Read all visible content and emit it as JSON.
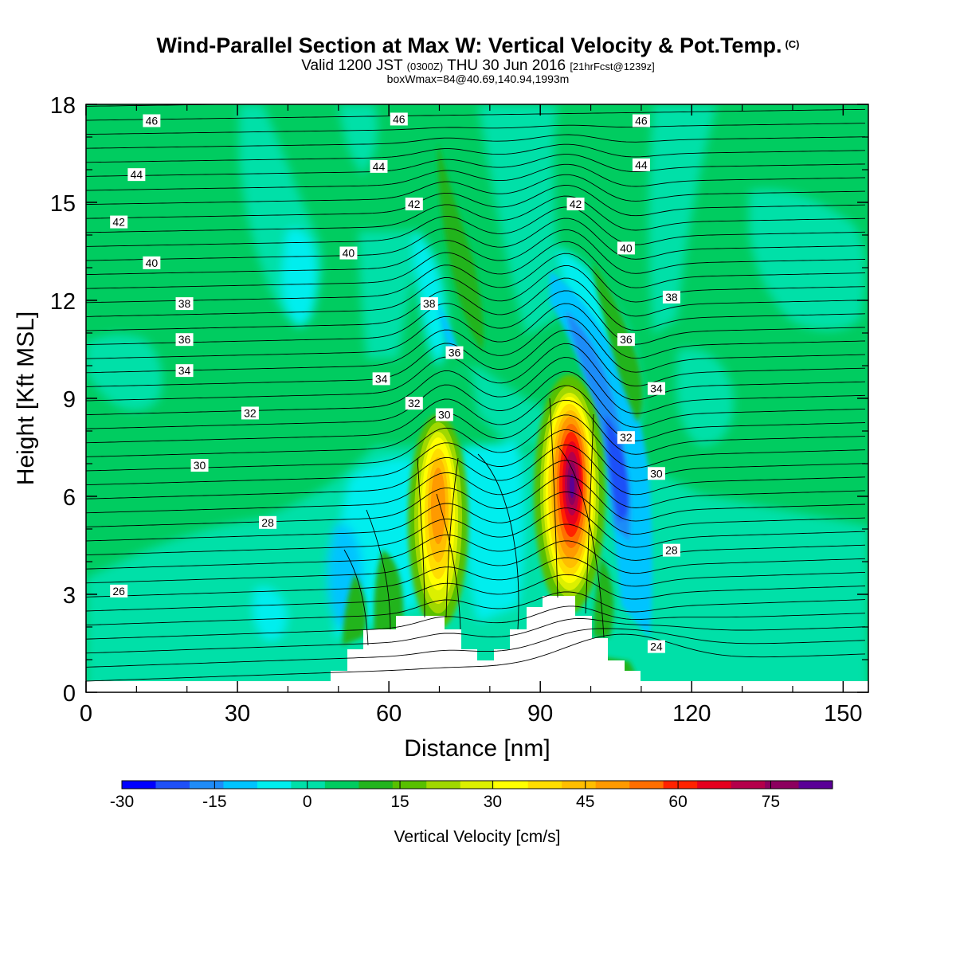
{
  "header": {
    "title": "Wind-Parallel Section at Max W: Vertical Velocity & Pot.Temp.",
    "title_mark": "(C)",
    "valid_prefix": "Valid 1200 JST",
    "valid_utc": "(0300Z)",
    "valid_date": "THU 30 Jun 2016",
    "forecast": "[21hrFcst@1239z]",
    "box_info": "boxWmax=84@40.69,140.94,1993m"
  },
  "chart_data": {
    "type": "heatmap",
    "xlabel": "Distance [nm]",
    "ylabel": "Height [Kft MSL]",
    "xlim": [
      0,
      155
    ],
    "ylim": [
      0,
      18
    ],
    "x_ticks": [
      0,
      30,
      60,
      90,
      120,
      150
    ],
    "y_ticks": [
      0,
      3,
      6,
      9,
      12,
      15,
      18
    ],
    "colorbar": {
      "label": "Vertical Velocity [cm/s]",
      "min": -30,
      "max": 85,
      "tick_values": [
        -30,
        -15,
        0,
        15,
        30,
        45,
        60,
        75
      ],
      "tick_labels": [
        "-30",
        "-15",
        "0",
        "15",
        "30",
        "45",
        "60",
        "75"
      ],
      "colors": [
        "#0000ff",
        "#1f50f8",
        "#1f8cf8",
        "#00c4ff",
        "#00eeee",
        "#00e0a8",
        "#00cc60",
        "#22b41e",
        "#58c000",
        "#a0d800",
        "#dcf000",
        "#ffff00",
        "#ffdd00",
        "#ffbe00",
        "#ff9a00",
        "#ff6e00",
        "#ff2200",
        "#e6001e",
        "#b4004a",
        "#8c005e",
        "#5a0096"
      ]
    },
    "contour_labels": [
      {
        "text": "46",
        "x": 13,
        "y": 17.5
      },
      {
        "text": "46",
        "x": 62,
        "y": 17.55
      },
      {
        "text": "46",
        "x": 110,
        "y": 17.5
      },
      {
        "text": "44",
        "x": 10,
        "y": 15.85
      },
      {
        "text": "44",
        "x": 58,
        "y": 16.1
      },
      {
        "text": "44",
        "x": 110,
        "y": 16.15
      },
      {
        "text": "42",
        "x": 6.5,
        "y": 14.4
      },
      {
        "text": "42",
        "x": 65,
        "y": 14.95
      },
      {
        "text": "42",
        "x": 97,
        "y": 14.95
      },
      {
        "text": "40",
        "x": 13,
        "y": 13.15
      },
      {
        "text": "40",
        "x": 52,
        "y": 13.45
      },
      {
        "text": "40",
        "x": 107,
        "y": 13.6
      },
      {
        "text": "38",
        "x": 19.5,
        "y": 11.9
      },
      {
        "text": "38",
        "x": 68,
        "y": 11.9
      },
      {
        "text": "38",
        "x": 116,
        "y": 12.1
      },
      {
        "text": "36",
        "x": 19.5,
        "y": 10.8
      },
      {
        "text": "36",
        "x": 73,
        "y": 10.4
      },
      {
        "text": "36",
        "x": 107,
        "y": 10.8
      },
      {
        "text": "34",
        "x": 19.5,
        "y": 9.85
      },
      {
        "text": "34",
        "x": 58.5,
        "y": 9.6
      },
      {
        "text": "34",
        "x": 113,
        "y": 9.3
      },
      {
        "text": "32",
        "x": 32.5,
        "y": 8.55
      },
      {
        "text": "32",
        "x": 65,
        "y": 8.85
      },
      {
        "text": "32",
        "x": 107,
        "y": 7.8
      },
      {
        "text": "30",
        "x": 22.5,
        "y": 6.95
      },
      {
        "text": "30",
        "x": 71,
        "y": 8.5
      },
      {
        "text": "30",
        "x": 113,
        "y": 6.7
      },
      {
        "text": "28",
        "x": 36,
        "y": 5.2
      },
      {
        "text": "28",
        "x": 116,
        "y": 4.35
      },
      {
        "text": "26",
        "x": 6.5,
        "y": 3.1
      },
      {
        "text": "24",
        "x": 113,
        "y": 1.4
      }
    ]
  }
}
